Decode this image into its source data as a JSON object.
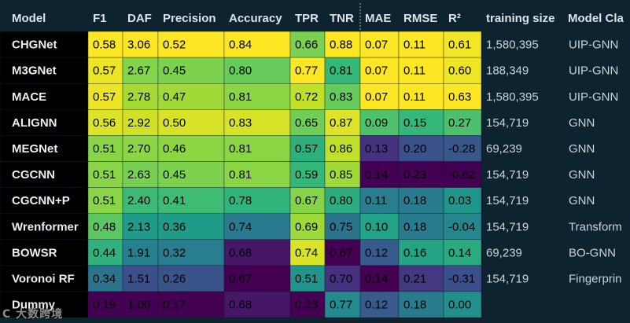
{
  "watermark": "C 大数跨境",
  "chart_data": {
    "type": "heatmap",
    "colormap": "viridis",
    "header": [
      "Model",
      "F1",
      "DAF",
      "Precision",
      "Accuracy",
      "TPR",
      "TNR",
      "MAE",
      "RMSE",
      "R²",
      "training size",
      "Model Cla"
    ],
    "rows": [
      {
        "model": "CHGNet",
        "values": [
          "0.58",
          "3.06",
          "0.52",
          "0.84",
          "0.66",
          "0.88",
          "0.07",
          "0.11",
          "0.61"
        ],
        "training_size": "1,580,395",
        "model_class": "UIP-GNN"
      },
      {
        "model": "M3GNet",
        "values": [
          "0.57",
          "2.67",
          "0.45",
          "0.80",
          "0.77",
          "0.81",
          "0.07",
          "0.11",
          "0.60"
        ],
        "training_size": "188,349",
        "model_class": "UIP-GNN"
      },
      {
        "model": "MACE",
        "values": [
          "0.57",
          "2.78",
          "0.47",
          "0.81",
          "0.72",
          "0.83",
          "0.07",
          "0.11",
          "0.63"
        ],
        "training_size": "1,580,395",
        "model_class": "UIP-GNN"
      },
      {
        "model": "ALIGNN",
        "values": [
          "0.56",
          "2.92",
          "0.50",
          "0.83",
          "0.65",
          "0.87",
          "0.09",
          "0.15",
          "0.27"
        ],
        "training_size": "154,719",
        "model_class": "GNN"
      },
      {
        "model": "MEGNet",
        "values": [
          "0.51",
          "2.70",
          "0.46",
          "0.81",
          "0.57",
          "0.86",
          "0.13",
          "0.20",
          "-0.28"
        ],
        "training_size": "69,239",
        "model_class": "GNN"
      },
      {
        "model": "CGCNN",
        "values": [
          "0.51",
          "2.63",
          "0.45",
          "0.81",
          "0.59",
          "0.85",
          "0.14",
          "0.23",
          "-0.62"
        ],
        "training_size": "154,719",
        "model_class": "GNN"
      },
      {
        "model": "CGCNN+P",
        "values": [
          "0.51",
          "2.40",
          "0.41",
          "0.78",
          "0.67",
          "0.80",
          "0.11",
          "0.18",
          "0.03"
        ],
        "training_size": "154,719",
        "model_class": "GNN"
      },
      {
        "model": "Wrenformer",
        "values": [
          "0.48",
          "2.13",
          "0.36",
          "0.74",
          "0.69",
          "0.75",
          "0.10",
          "0.18",
          "-0.04"
        ],
        "training_size": "154,719",
        "model_class": "Transform"
      },
      {
        "model": "BOWSR",
        "values": [
          "0.44",
          "1.91",
          "0.32",
          "0.68",
          "0.74",
          "0.67",
          "0.12",
          "0.16",
          "0.14"
        ],
        "training_size": "69,239",
        "model_class": "BO-GNN"
      },
      {
        "model": "Voronoi RF",
        "values": [
          "0.34",
          "1.51",
          "0.26",
          "0.67",
          "0.51",
          "0.70",
          "0.14",
          "0.21",
          "-0.31"
        ],
        "training_size": "154,719",
        "model_class": "Fingerprin"
      },
      {
        "model": "Dummy",
        "values": [
          "0.19",
          "1.00",
          "0.17",
          "0.68",
          "0.23",
          "0.77",
          "0.12",
          "0.18",
          "0.00"
        ],
        "training_size": "",
        "model_class": ""
      }
    ],
    "colors": {
      "background": "#0d2430",
      "header_text": "#dbe4e8",
      "model_cell": "#000000",
      "info_text": "#c9d3d8",
      "cell_text": "#000000"
    }
  }
}
